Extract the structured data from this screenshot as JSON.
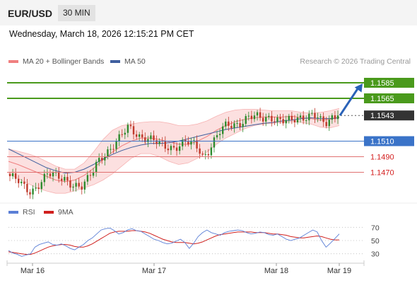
{
  "header": {
    "symbol": "EUR/USD",
    "timeframe": "30 MIN"
  },
  "datetime": "Wednesday, March 18, 2026 12:15:21 PM CET",
  "legend": {
    "ma20_label": "MA 20 + Bollinger Bands",
    "ma50_label": "MA 50",
    "credit": "Research © 2026 Trading Central"
  },
  "rsi_legend": {
    "rsi_label": "RSI",
    "ma_label": "9MA"
  },
  "colors": {
    "up": "#2e8b2e",
    "down": "#c0392b",
    "resistance": "#4a9a1c",
    "support_red": "#e07070",
    "pivot_blue": "#3a73c8",
    "bollinger_fill": "#fbd8d8",
    "ma20": "#f08080",
    "ma50": "#3f5f9f",
    "rsi": "#5b7fd6",
    "rsi_ma": "#d0201e",
    "current_price_bg": "#333333"
  },
  "chart_data": [
    {
      "type": "candlestick",
      "title": "",
      "x_labels": [
        "Mar 16",
        "Mar 17",
        "Mar 18",
        "Mar 19"
      ],
      "ylim": [
        1.1435,
        1.1605
      ],
      "current_price": 1.1543,
      "levels": [
        {
          "label": "1.1585",
          "value": 1.1585,
          "kind": "resistance"
        },
        {
          "label": "1.1565",
          "value": 1.1565,
          "kind": "resistance"
        },
        {
          "label": "1.1543",
          "value": 1.1543,
          "kind": "current"
        },
        {
          "label": "1.1510",
          "value": 1.151,
          "kind": "pivot"
        },
        {
          "label": "1.1490",
          "value": 1.149,
          "kind": "support"
        },
        {
          "label": "1.1470",
          "value": 1.147,
          "kind": "support"
        }
      ],
      "close_path": [
        1.1465,
        1.1462,
        1.1458,
        1.1452,
        1.1448,
        1.1445,
        1.145,
        1.1456,
        1.1462,
        1.1468,
        1.1466,
        1.1464,
        1.1463,
        1.1462,
        1.1458,
        1.1455,
        1.1452,
        1.145,
        1.1456,
        1.1464,
        1.1475,
        1.1486,
        1.1492,
        1.1496,
        1.15,
        1.1506,
        1.1512,
        1.152,
        1.1528,
        1.1526,
        1.1521,
        1.1516,
        1.1514,
        1.1512,
        1.151,
        1.1508,
        1.1506,
        1.1504,
        1.1503,
        1.1502,
        1.1504,
        1.1506,
        1.1508,
        1.1507,
        1.1505,
        1.15,
        1.149,
        1.1496,
        1.1506,
        1.1514,
        1.1522,
        1.1528,
        1.153,
        1.1531,
        1.1532,
        1.1535,
        1.1539,
        1.1542,
        1.1541,
        1.154,
        1.1538,
        1.1539,
        1.1541,
        1.154,
        1.1538,
        1.1537,
        1.1536,
        1.1535,
        1.1537,
        1.1539,
        1.1541,
        1.1544,
        1.1546,
        1.1543,
        1.1535,
        1.153,
        1.1535,
        1.154,
        1.1543
      ],
      "bollinger_upper": [
        1.15,
        1.1497,
        1.1494,
        1.149,
        1.1484,
        1.1478,
        1.1474,
        1.1474,
        1.1482,
        1.1496,
        1.1512,
        1.1524,
        1.153,
        1.1532,
        1.1534,
        1.1535,
        1.1535,
        1.1533,
        1.153,
        1.153,
        1.1532,
        1.1536,
        1.1542,
        1.1547,
        1.155,
        1.1551,
        1.1551,
        1.155,
        1.1549,
        1.1549,
        1.1549,
        1.1547,
        1.1546,
        1.1547,
        1.1549,
        1.1552
      ],
      "bollinger_lower": [
        1.1468,
        1.1462,
        1.1456,
        1.145,
        1.1446,
        1.1443,
        1.1443,
        1.1446,
        1.145,
        1.1454,
        1.146,
        1.1468,
        1.1478,
        1.1488,
        1.1494,
        1.1494,
        1.149,
        1.1484,
        1.148,
        1.1482,
        1.1488,
        1.1496,
        1.1506,
        1.1514,
        1.152,
        1.1526,
        1.153,
        1.1532,
        1.1533,
        1.1534,
        1.1535,
        1.1534,
        1.1532,
        1.1528,
        1.1527,
        1.153
      ],
      "ma20": [
        1.1484,
        1.148,
        1.1475,
        1.147,
        1.1465,
        1.146,
        1.1458,
        1.146,
        1.1466,
        1.1475,
        1.1486,
        1.1496,
        1.1504,
        1.151,
        1.1514,
        1.1514,
        1.1512,
        1.1509,
        1.1506,
        1.1506,
        1.151,
        1.1516,
        1.1524,
        1.153,
        1.1535,
        1.1538,
        1.154,
        1.1541,
        1.1541,
        1.1541,
        1.1542,
        1.154,
        1.1539,
        1.1537,
        1.1538,
        1.1541
      ],
      "ma50": [
        1.15,
        1.1494,
        1.1488,
        1.1482,
        1.1476,
        1.1472,
        1.1469,
        1.147,
        1.1474,
        1.148,
        1.1487,
        1.1493,
        1.1498,
        1.1502,
        1.1505,
        1.1507,
        1.1507,
        1.1508,
        1.151,
        1.1513,
        1.1516,
        1.1519,
        1.1522,
        1.1525,
        1.1527,
        1.1529,
        1.1531,
        1.1533,
        1.1534,
        1.1536,
        1.1537,
        1.1539,
        1.154,
        1.1539,
        1.1539,
        1.154
      ],
      "forecast_target": 1.1585
    },
    {
      "type": "line",
      "title": "",
      "ylim": [
        20,
        80
      ],
      "y_ticks": [
        {
          "label": "70",
          "value": 70
        },
        {
          "label": "50",
          "value": 50
        },
        {
          "label": "30",
          "value": 30
        }
      ],
      "series": [
        {
          "name": "RSI",
          "values": [
            35,
            31,
            29,
            26,
            28,
            30,
            40,
            44,
            46,
            48,
            44,
            43,
            45,
            42,
            38,
            36,
            40,
            44,
            50,
            54,
            60,
            66,
            68,
            69,
            65,
            60,
            62,
            66,
            68,
            65,
            64,
            60,
            56,
            52,
            50,
            47,
            45,
            46,
            49,
            52,
            47,
            38,
            46,
            56,
            62,
            66,
            62,
            60,
            58,
            62,
            64,
            65,
            66,
            65,
            62,
            60,
            61,
            63,
            62,
            59,
            58,
            60,
            56,
            52,
            50,
            52,
            54,
            58,
            62,
            66,
            63,
            50,
            40,
            46,
            53,
            60
          ]
        },
        {
          "name": "9MA",
          "values": [
            33,
            32,
            31,
            30,
            29,
            29,
            31,
            34,
            37,
            40,
            42,
            43,
            44,
            44,
            43,
            41,
            40,
            40,
            42,
            45,
            49,
            53,
            57,
            61,
            63,
            64,
            64,
            64,
            65,
            65,
            64,
            63,
            61,
            58,
            55,
            52,
            50,
            48,
            47,
            47,
            47,
            46,
            45,
            46,
            48,
            51,
            54,
            57,
            59,
            60,
            61,
            62,
            63,
            63,
            63,
            63,
            62,
            62,
            62,
            61,
            60,
            60,
            59,
            58,
            56,
            55,
            54,
            54,
            55,
            56,
            57,
            56,
            54,
            52,
            51,
            51
          ]
        }
      ]
    }
  ]
}
